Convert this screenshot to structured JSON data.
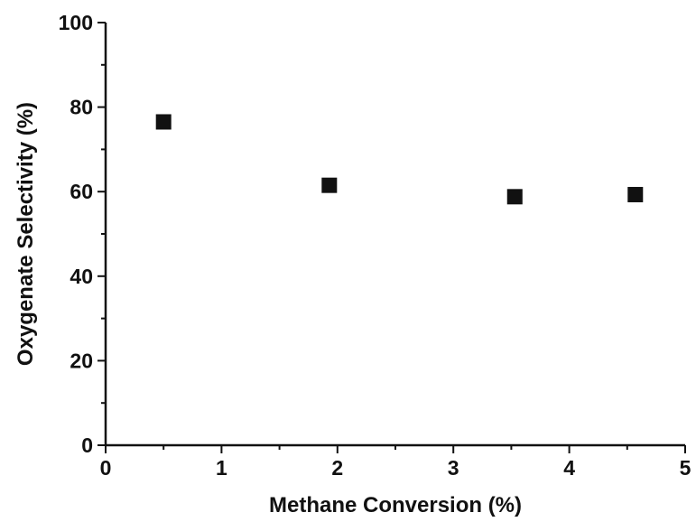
{
  "chart_data": {
    "type": "scatter",
    "title": "",
    "xlabel": "Methane Conversion (%)",
    "ylabel": "Oxygenate Selectivity (%)",
    "xlim": [
      0,
      5
    ],
    "ylim": [
      0,
      100
    ],
    "x_ticks": [
      "0",
      "1",
      "2",
      "3",
      "4",
      "5"
    ],
    "y_ticks": [
      "0",
      "20",
      "40",
      "60",
      "80",
      "100"
    ],
    "grid": false,
    "marker": "filled-square",
    "marker_color": "#111111",
    "series": [
      {
        "x": [
          0.5,
          1.93,
          3.53,
          4.57
        ],
        "y": [
          76.5,
          61.5,
          58.8,
          59.3
        ]
      }
    ]
  }
}
